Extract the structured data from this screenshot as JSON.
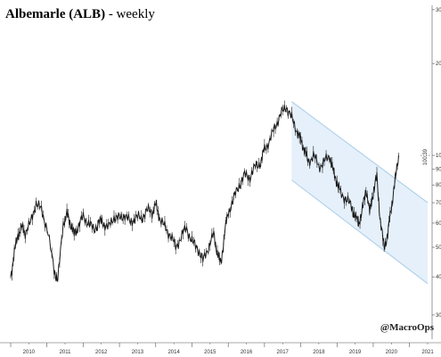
{
  "title_main": "Albemarle (ALB)",
  "title_suffix": " - weekly",
  "watermark": "@MacroOps",
  "last_price_label": "100.39",
  "colors": {
    "price_line": "#1a1a1a",
    "channel_fill": "#dcebf8",
    "channel_line": "#a9cde8",
    "axis": "#555555"
  },
  "chart_data": {
    "type": "line",
    "title": "Albemarle (ALB) - weekly",
    "xlabel": "",
    "ylabel": "",
    "yscale": "log",
    "ylim": [
      25,
      310
    ],
    "y_ticks": [
      30,
      40,
      50,
      60,
      70,
      80,
      90,
      100,
      200,
      300
    ],
    "x_tick_labels": [
      "2010",
      "2011",
      "2012",
      "2013",
      "2014",
      "2015",
      "2016",
      "2017",
      "2018",
      "2019",
      "2020",
      "2021"
    ],
    "xlim": [
      2010.0,
      2021.5
    ],
    "grid": false,
    "series": [
      {
        "values_x": [
          2010.0,
          2010.1,
          2010.2,
          2010.3,
          2010.4,
          2010.55,
          2010.7,
          2010.85,
          2011.0,
          2011.2,
          2011.3,
          2011.45,
          2011.55,
          2011.65,
          2011.75,
          2011.85,
          2012.0,
          2012.15,
          2012.3,
          2012.45,
          2012.55,
          2012.7,
          2012.85,
          2013.0,
          2013.15,
          2013.3,
          2013.45,
          2013.6,
          2013.75,
          2013.9,
          2014.0,
          2014.1,
          2014.25,
          2014.4,
          2014.55,
          2014.7,
          2014.85,
          2015.0,
          2015.15,
          2015.3,
          2015.45,
          2015.6,
          2015.7,
          2015.8,
          2015.9,
          2016.0,
          2016.15,
          2016.3,
          2016.45,
          2016.6,
          2016.75,
          2016.9,
          2017.0,
          2017.15,
          2017.3,
          2017.45,
          2017.6,
          2017.75,
          2017.9,
          2018.0,
          2018.1,
          2018.2,
          2018.35,
          2018.5,
          2018.65,
          2018.8,
          2018.9,
          2019.0,
          2019.1,
          2019.25,
          2019.4,
          2019.5,
          2019.6,
          2019.7,
          2019.8,
          2019.9,
          2020.0,
          2020.1,
          2020.2,
          2020.3,
          2020.4,
          2020.5,
          2020.6,
          2020.7
        ],
        "values": [
          40,
          48,
          55,
          58,
          56,
          60,
          70,
          66,
          58,
          42,
          39,
          60,
          64,
          60,
          55,
          58,
          63,
          60,
          57,
          61,
          60,
          58,
          63,
          62,
          64,
          60,
          63,
          62,
          66,
          65,
          69,
          63,
          58,
          55,
          50,
          54,
          58,
          52,
          50,
          45,
          50,
          55,
          48,
          44,
          56,
          65,
          72,
          80,
          86,
          85,
          92,
          95,
          105,
          112,
          125,
          136,
          145,
          132,
          120,
          112,
          105,
          95,
          100,
          92,
          95,
          100,
          88,
          82,
          75,
          72,
          68,
          63,
          60,
          66,
          78,
          65,
          76,
          85,
          60,
          50,
          55,
          68,
          82,
          100
        ]
      }
    ],
    "annotations": [
      {
        "type": "channel",
        "upper": [
          [
            2017.75,
            150
          ],
          [
            2021.5,
            70
          ]
        ],
        "lower": [
          [
            2017.75,
            83
          ],
          [
            2021.5,
            38
          ]
        ]
      }
    ]
  }
}
